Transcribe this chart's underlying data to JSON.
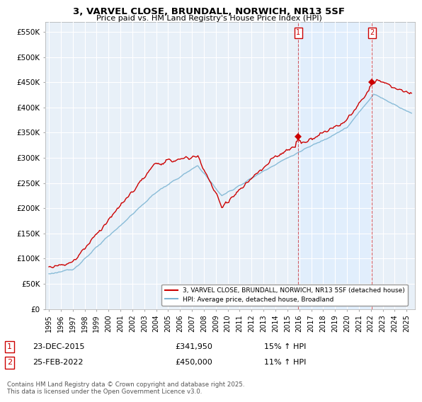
{
  "title": "3, VARVEL CLOSE, BRUNDALL, NORWICH, NR13 5SF",
  "subtitle": "Price paid vs. HM Land Registry's House Price Index (HPI)",
  "ylabel_ticks": [
    "£0",
    "£50K",
    "£100K",
    "£150K",
    "£200K",
    "£250K",
    "£300K",
    "£350K",
    "£400K",
    "£450K",
    "£500K",
    "£550K"
  ],
  "ytick_vals": [
    0,
    50000,
    100000,
    150000,
    200000,
    250000,
    300000,
    350000,
    400000,
    450000,
    500000,
    550000
  ],
  "ylim": [
    0,
    570000
  ],
  "legend_line1": "3, VARVEL CLOSE, BRUNDALL, NORWICH, NR13 5SF (detached house)",
  "legend_line2": "HPI: Average price, detached house, Broadland",
  "marker1_date": "23-DEC-2015",
  "marker1_price": "£341,950",
  "marker1_hpi": "15% ↑ HPI",
  "marker2_date": "25-FEB-2022",
  "marker2_price": "£450,000",
  "marker2_hpi": "11% ↑ HPI",
  "footer": "Contains HM Land Registry data © Crown copyright and database right 2025.\nThis data is licensed under the Open Government Licence v3.0.",
  "red_color": "#cc0000",
  "blue_color": "#7eb6d4",
  "shade_color": "#ddeeff",
  "background_color": "#e8f0f8"
}
